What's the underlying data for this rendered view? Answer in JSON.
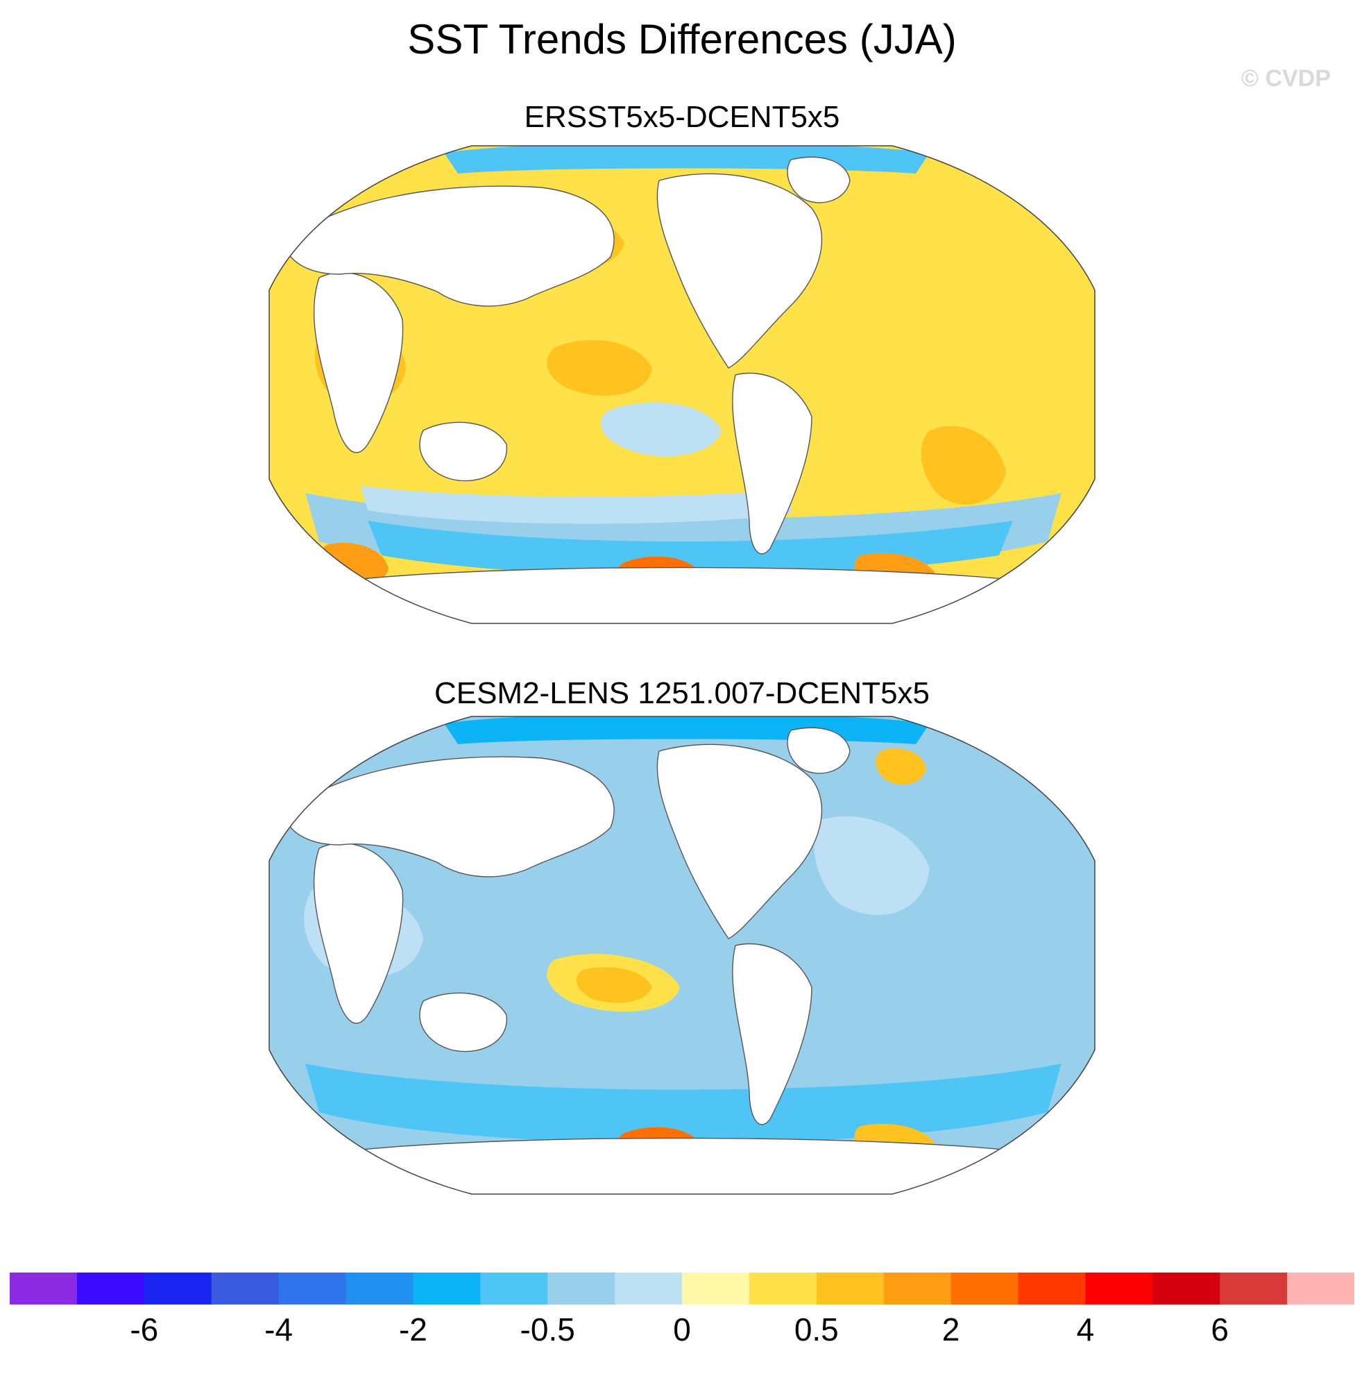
{
  "title": "SST Trends Differences (JJA)",
  "watermark": "© CVDP",
  "panels": [
    {
      "title": "ERSST5x5-DCENT5x5",
      "regions": [
        {
          "kind": "ocean",
          "level": 11
        },
        {
          "kind": "warm-north-pacific",
          "level": 12
        },
        {
          "kind": "warm-central-pacific",
          "level": 12
        },
        {
          "kind": "cool-equatorial-pacific",
          "level": 9
        },
        {
          "kind": "warm-indian",
          "level": 12
        },
        {
          "kind": "warm-north-atlantic",
          "level": 11
        },
        {
          "kind": "warm-south-atlantic",
          "level": 12
        },
        {
          "kind": "southern-ocean-band",
          "level": 8
        },
        {
          "kind": "southern-ocean-inner",
          "level": 7
        },
        {
          "kind": "southern-ocean-light",
          "level": 9
        },
        {
          "kind": "arctic-cap",
          "level": 7
        },
        {
          "kind": "hotspot-south-atlantic",
          "level": 13
        },
        {
          "kind": "hotspot-amundsen",
          "level": 14
        },
        {
          "kind": "hotspot-weddell",
          "level": 13
        }
      ]
    },
    {
      "title": "CESM2-LENS 1251.007-DCENT5x5",
      "regions": [
        {
          "kind": "ocean",
          "level": 8
        },
        {
          "kind": "southern-ocean-band",
          "level": 7
        },
        {
          "kind": "north-atlantic-light",
          "level": 9
        },
        {
          "kind": "indian-light",
          "level": 9
        },
        {
          "kind": "arctic-cap",
          "level": 6
        },
        {
          "kind": "warm-east-pacific",
          "level": 11
        },
        {
          "kind": "warm-east-pacific-core",
          "level": 12
        },
        {
          "kind": "warm-north-pacific-streak",
          "level": 11
        },
        {
          "kind": "warm-indian-spot",
          "level": 11
        },
        {
          "kind": "hotspot-north-atlantic",
          "level": 12
        },
        {
          "kind": "hotspot-amundsen",
          "level": 14
        },
        {
          "kind": "hotspot-weddell",
          "level": 12
        }
      ]
    }
  ],
  "colorbar": {
    "colors": [
      "#8a2be2",
      "#3a0cff",
      "#1a25f0",
      "#3a5ae0",
      "#2f74ea",
      "#2090f2",
      "#0cb4f5",
      "#4fc5f5",
      "#98d0ec",
      "#bde0f5",
      "#fff8a8",
      "#ffe24a",
      "#ffc21e",
      "#ff9e14",
      "#ff7000",
      "#ff3a00",
      "#fa0000",
      "#d40010",
      "#d83a3a",
      "#ffb4b4"
    ],
    "labels": [
      "-6",
      "-4",
      "-2",
      "-0.5",
      "0",
      "0.5",
      "2",
      "4",
      "6"
    ],
    "label_boundaries": [
      2,
      4,
      6,
      8,
      10,
      12,
      14,
      16,
      18
    ]
  }
}
